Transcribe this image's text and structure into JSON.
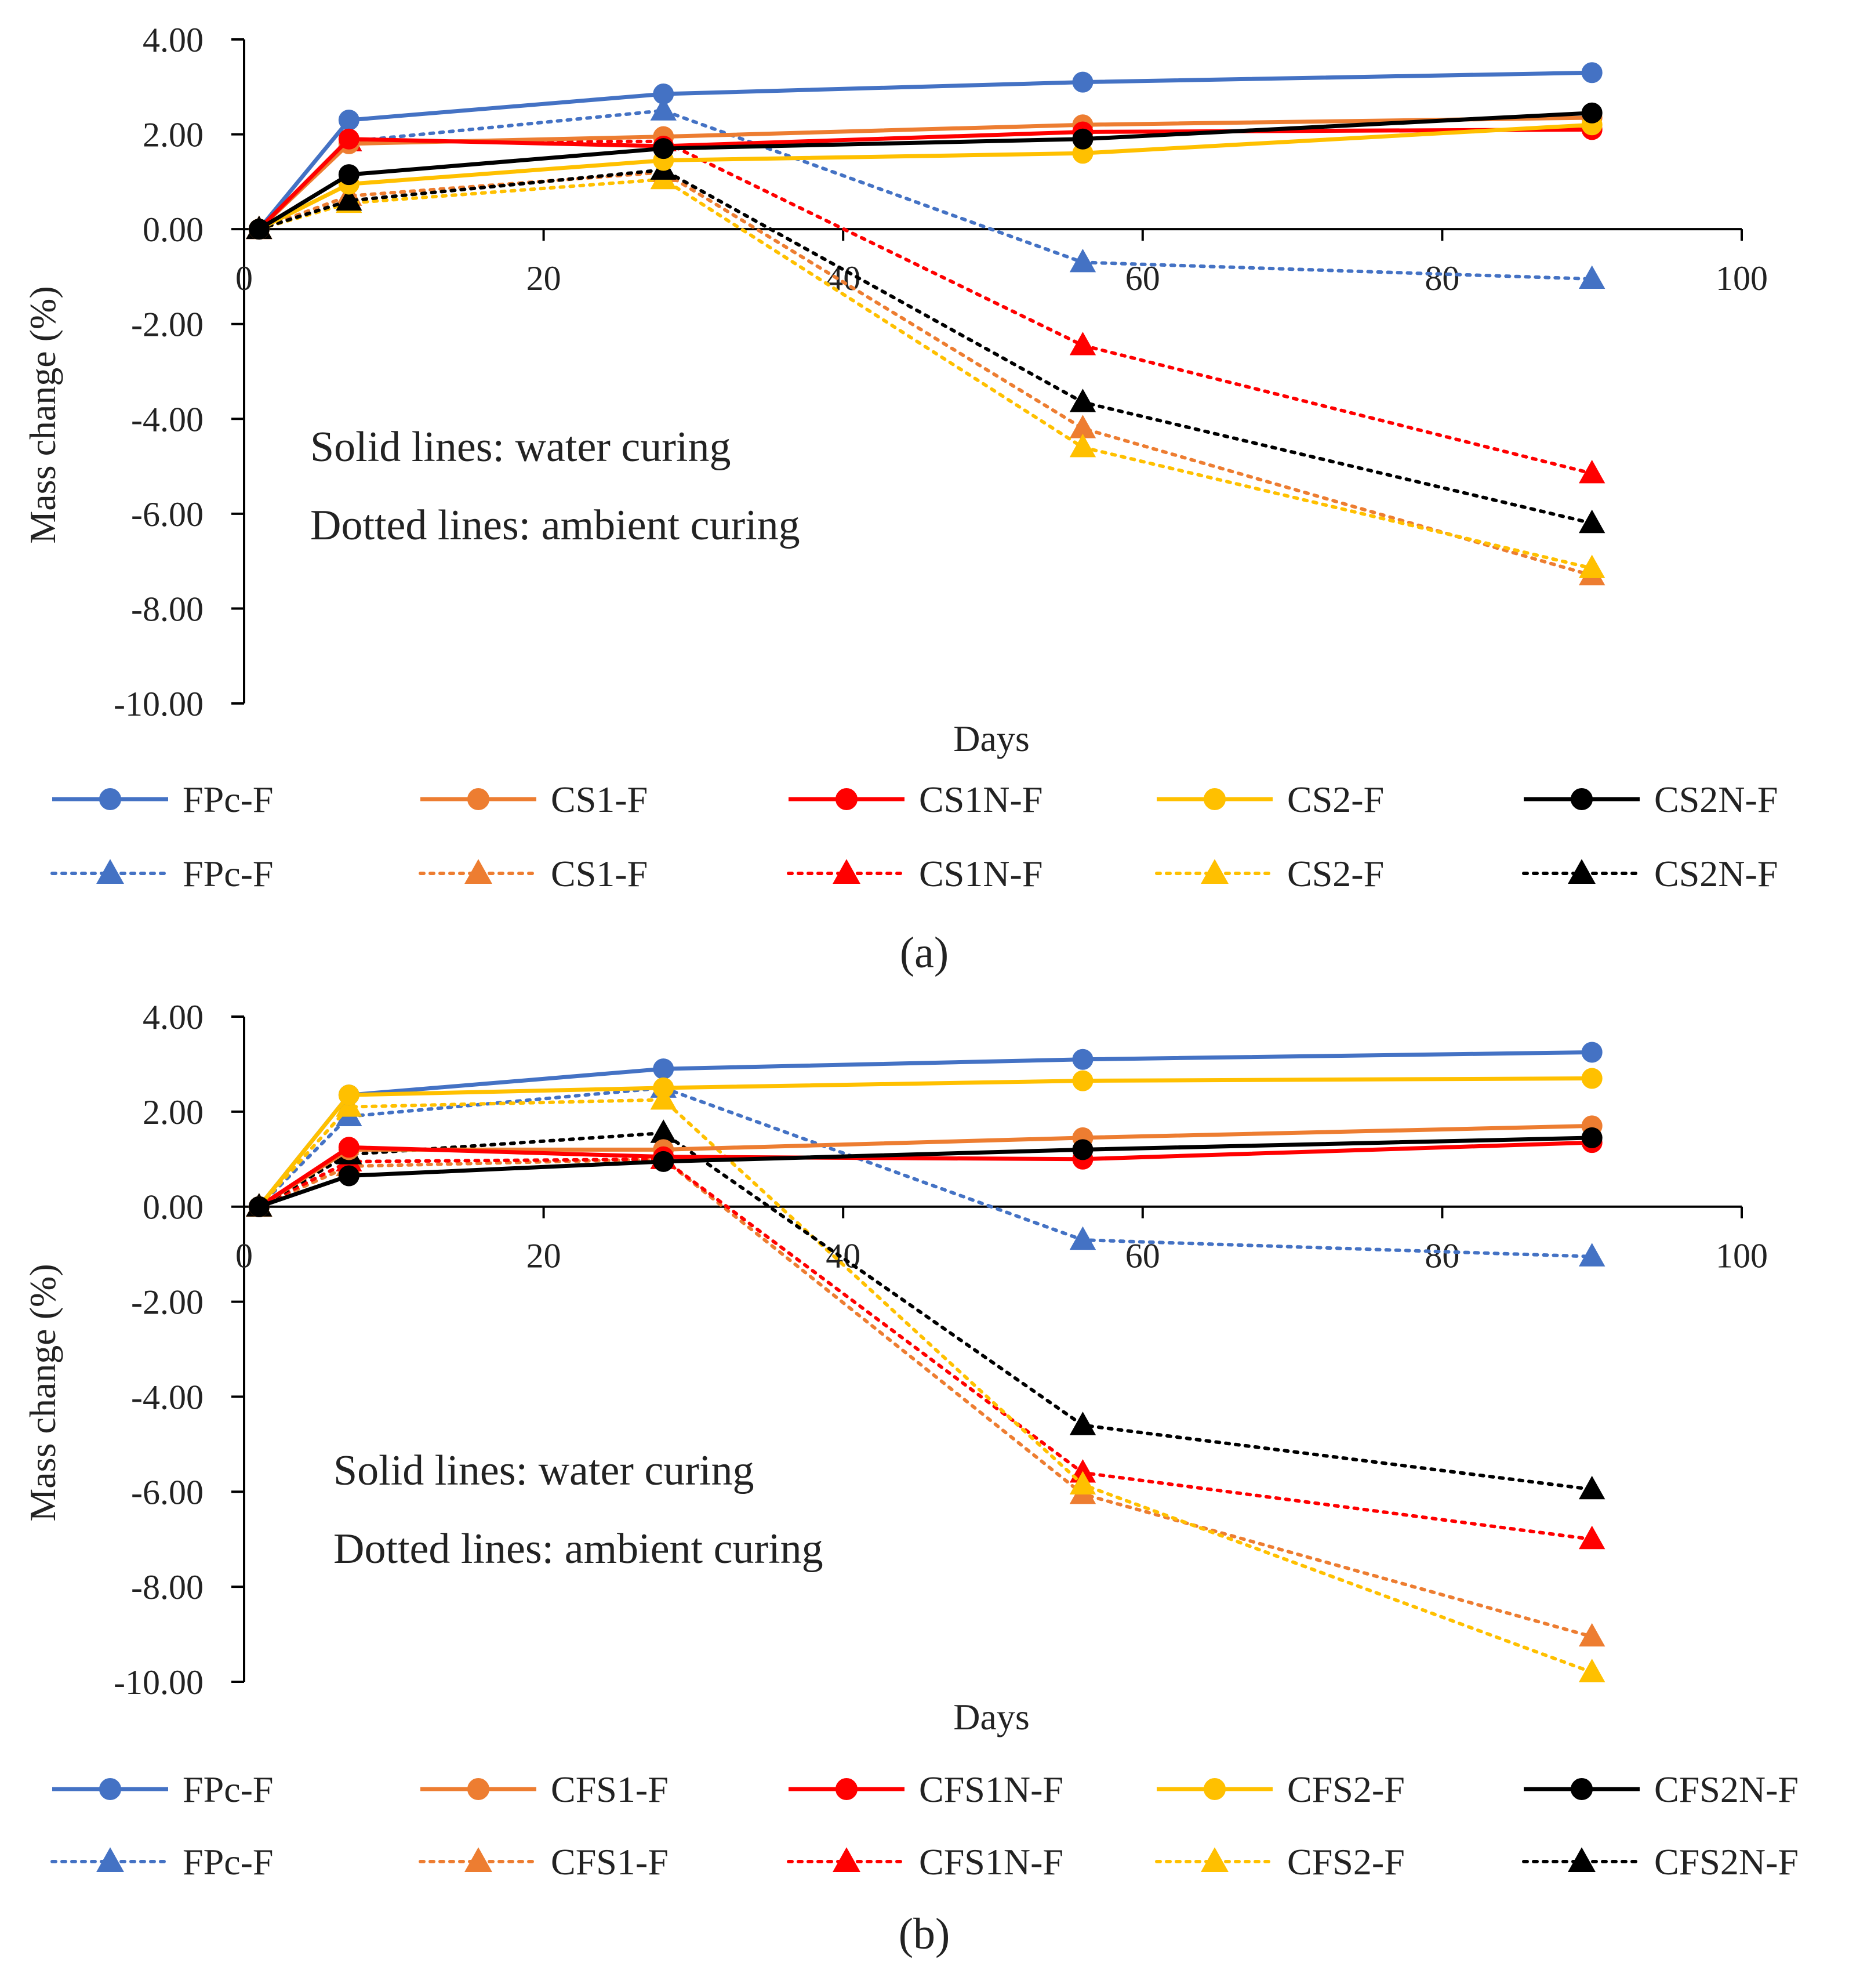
{
  "chart_data": [
    {
      "type": "line",
      "caption": "(a)",
      "xlabel": "Days",
      "ylabel": "Mass change (%)",
      "xlim": [
        0,
        100
      ],
      "ylim": [
        -10,
        4
      ],
      "x_ticks": [
        "0",
        "20",
        "40",
        "60",
        "80",
        "100"
      ],
      "y_ticks": [
        "4.00",
        "2.00",
        "0.00",
        "-2.00",
        "-4.00",
        "-6.00",
        "-8.00",
        "-10.00"
      ],
      "annotations": [
        "Solid lines: water curing",
        "Dotted lines: ambient curing"
      ],
      "x": [
        1,
        7,
        28,
        56,
        90
      ],
      "series": [
        {
          "name": "FPc-F",
          "curing": "water",
          "style": "solid",
          "marker": "circle",
          "color": "#4472C4",
          "values": [
            0.0,
            2.3,
            2.85,
            3.1,
            3.3
          ]
        },
        {
          "name": "CS1-F",
          "curing": "water",
          "style": "solid",
          "marker": "circle",
          "color": "#ED7D31",
          "values": [
            0.0,
            1.8,
            1.95,
            2.2,
            2.35
          ]
        },
        {
          "name": "CS1N-F",
          "curing": "water",
          "style": "solid",
          "marker": "circle",
          "color": "#FF0000",
          "values": [
            0.0,
            1.9,
            1.75,
            2.05,
            2.1
          ]
        },
        {
          "name": "CS2-F",
          "curing": "water",
          "style": "solid",
          "marker": "circle",
          "color": "#FFC000",
          "values": [
            0.0,
            0.95,
            1.45,
            1.6,
            2.2
          ]
        },
        {
          "name": "CS2N-F",
          "curing": "water",
          "style": "solid",
          "marker": "circle",
          "color": "#000000",
          "values": [
            0.0,
            1.15,
            1.7,
            1.9,
            2.45
          ]
        },
        {
          "name": "FPc-F",
          "curing": "ambient",
          "style": "dotted",
          "marker": "triangle",
          "color": "#4472C4",
          "values": [
            0.0,
            1.85,
            2.5,
            -0.7,
            -1.05
          ]
        },
        {
          "name": "CS1-F",
          "curing": "ambient",
          "style": "dotted",
          "marker": "triangle",
          "color": "#ED7D31",
          "values": [
            0.0,
            0.7,
            1.2,
            -4.2,
            -7.3
          ]
        },
        {
          "name": "CS1N-F",
          "curing": "ambient",
          "style": "dotted",
          "marker": "triangle",
          "color": "#FF0000",
          "values": [
            0.0,
            1.85,
            1.85,
            -2.45,
            -5.15
          ]
        },
        {
          "name": "CS2-F",
          "curing": "ambient",
          "style": "dotted",
          "marker": "triangle",
          "color": "#FFC000",
          "values": [
            0.0,
            0.55,
            1.05,
            -4.6,
            -7.15
          ]
        },
        {
          "name": "CS2N-F",
          "curing": "ambient",
          "style": "dotted",
          "marker": "triangle",
          "color": "#000000",
          "values": [
            0.0,
            0.6,
            1.25,
            -3.65,
            -6.2
          ]
        }
      ]
    },
    {
      "type": "line",
      "caption": "(b)",
      "xlabel": "Days",
      "ylabel": "Mass change (%)",
      "xlim": [
        0,
        100
      ],
      "ylim": [
        -10,
        4
      ],
      "x_ticks": [
        "0",
        "20",
        "40",
        "60",
        "80",
        "100"
      ],
      "y_ticks": [
        "4.00",
        "2.00",
        "0.00",
        "-2.00",
        "-4.00",
        "-6.00",
        "-8.00",
        "-10.00"
      ],
      "annotations": [
        "Solid lines: water curing",
        "Dotted lines: ambient curing"
      ],
      "x": [
        1,
        7,
        28,
        56,
        90
      ],
      "series": [
        {
          "name": "FPc-F",
          "curing": "water",
          "style": "solid",
          "marker": "circle",
          "color": "#4472C4",
          "values": [
            0.0,
            2.35,
            2.9,
            3.1,
            3.25
          ]
        },
        {
          "name": "CFS1-F",
          "curing": "water",
          "style": "solid",
          "marker": "circle",
          "color": "#ED7D31",
          "values": [
            0.0,
            1.2,
            1.2,
            1.45,
            1.7
          ]
        },
        {
          "name": "CFS1N-F",
          "curing": "water",
          "style": "solid",
          "marker": "circle",
          "color": "#FF0000",
          "values": [
            0.0,
            1.25,
            1.05,
            1.0,
            1.35
          ]
        },
        {
          "name": "CFS2-F",
          "curing": "water",
          "style": "solid",
          "marker": "circle",
          "color": "#FFC000",
          "values": [
            0.0,
            2.35,
            2.5,
            2.65,
            2.7
          ]
        },
        {
          "name": "CFS2N-F",
          "curing": "water",
          "style": "solid",
          "marker": "circle",
          "color": "#000000",
          "values": [
            0.0,
            0.65,
            0.95,
            1.2,
            1.45
          ]
        },
        {
          "name": "FPc-F",
          "curing": "ambient",
          "style": "dotted",
          "marker": "triangle",
          "color": "#4472C4",
          "values": [
            0.0,
            1.9,
            2.5,
            -0.7,
            -1.05
          ]
        },
        {
          "name": "CFS1-F",
          "curing": "ambient",
          "style": "dotted",
          "marker": "triangle",
          "color": "#ED7D31",
          "values": [
            0.0,
            0.85,
            1.0,
            -6.05,
            -9.05
          ]
        },
        {
          "name": "CFS1N-F",
          "curing": "ambient",
          "style": "dotted",
          "marker": "triangle",
          "color": "#FF0000",
          "values": [
            0.0,
            0.95,
            1.0,
            -5.6,
            -7.0
          ]
        },
        {
          "name": "CFS2-F",
          "curing": "ambient",
          "style": "dotted",
          "marker": "triangle",
          "color": "#FFC000",
          "values": [
            0.0,
            2.1,
            2.25,
            -5.85,
            -9.8
          ]
        },
        {
          "name": "CFS2N-F",
          "curing": "ambient",
          "style": "dotted",
          "marker": "triangle",
          "color": "#000000",
          "values": [
            0.0,
            1.1,
            1.55,
            -4.6,
            -5.95
          ]
        }
      ]
    }
  ]
}
